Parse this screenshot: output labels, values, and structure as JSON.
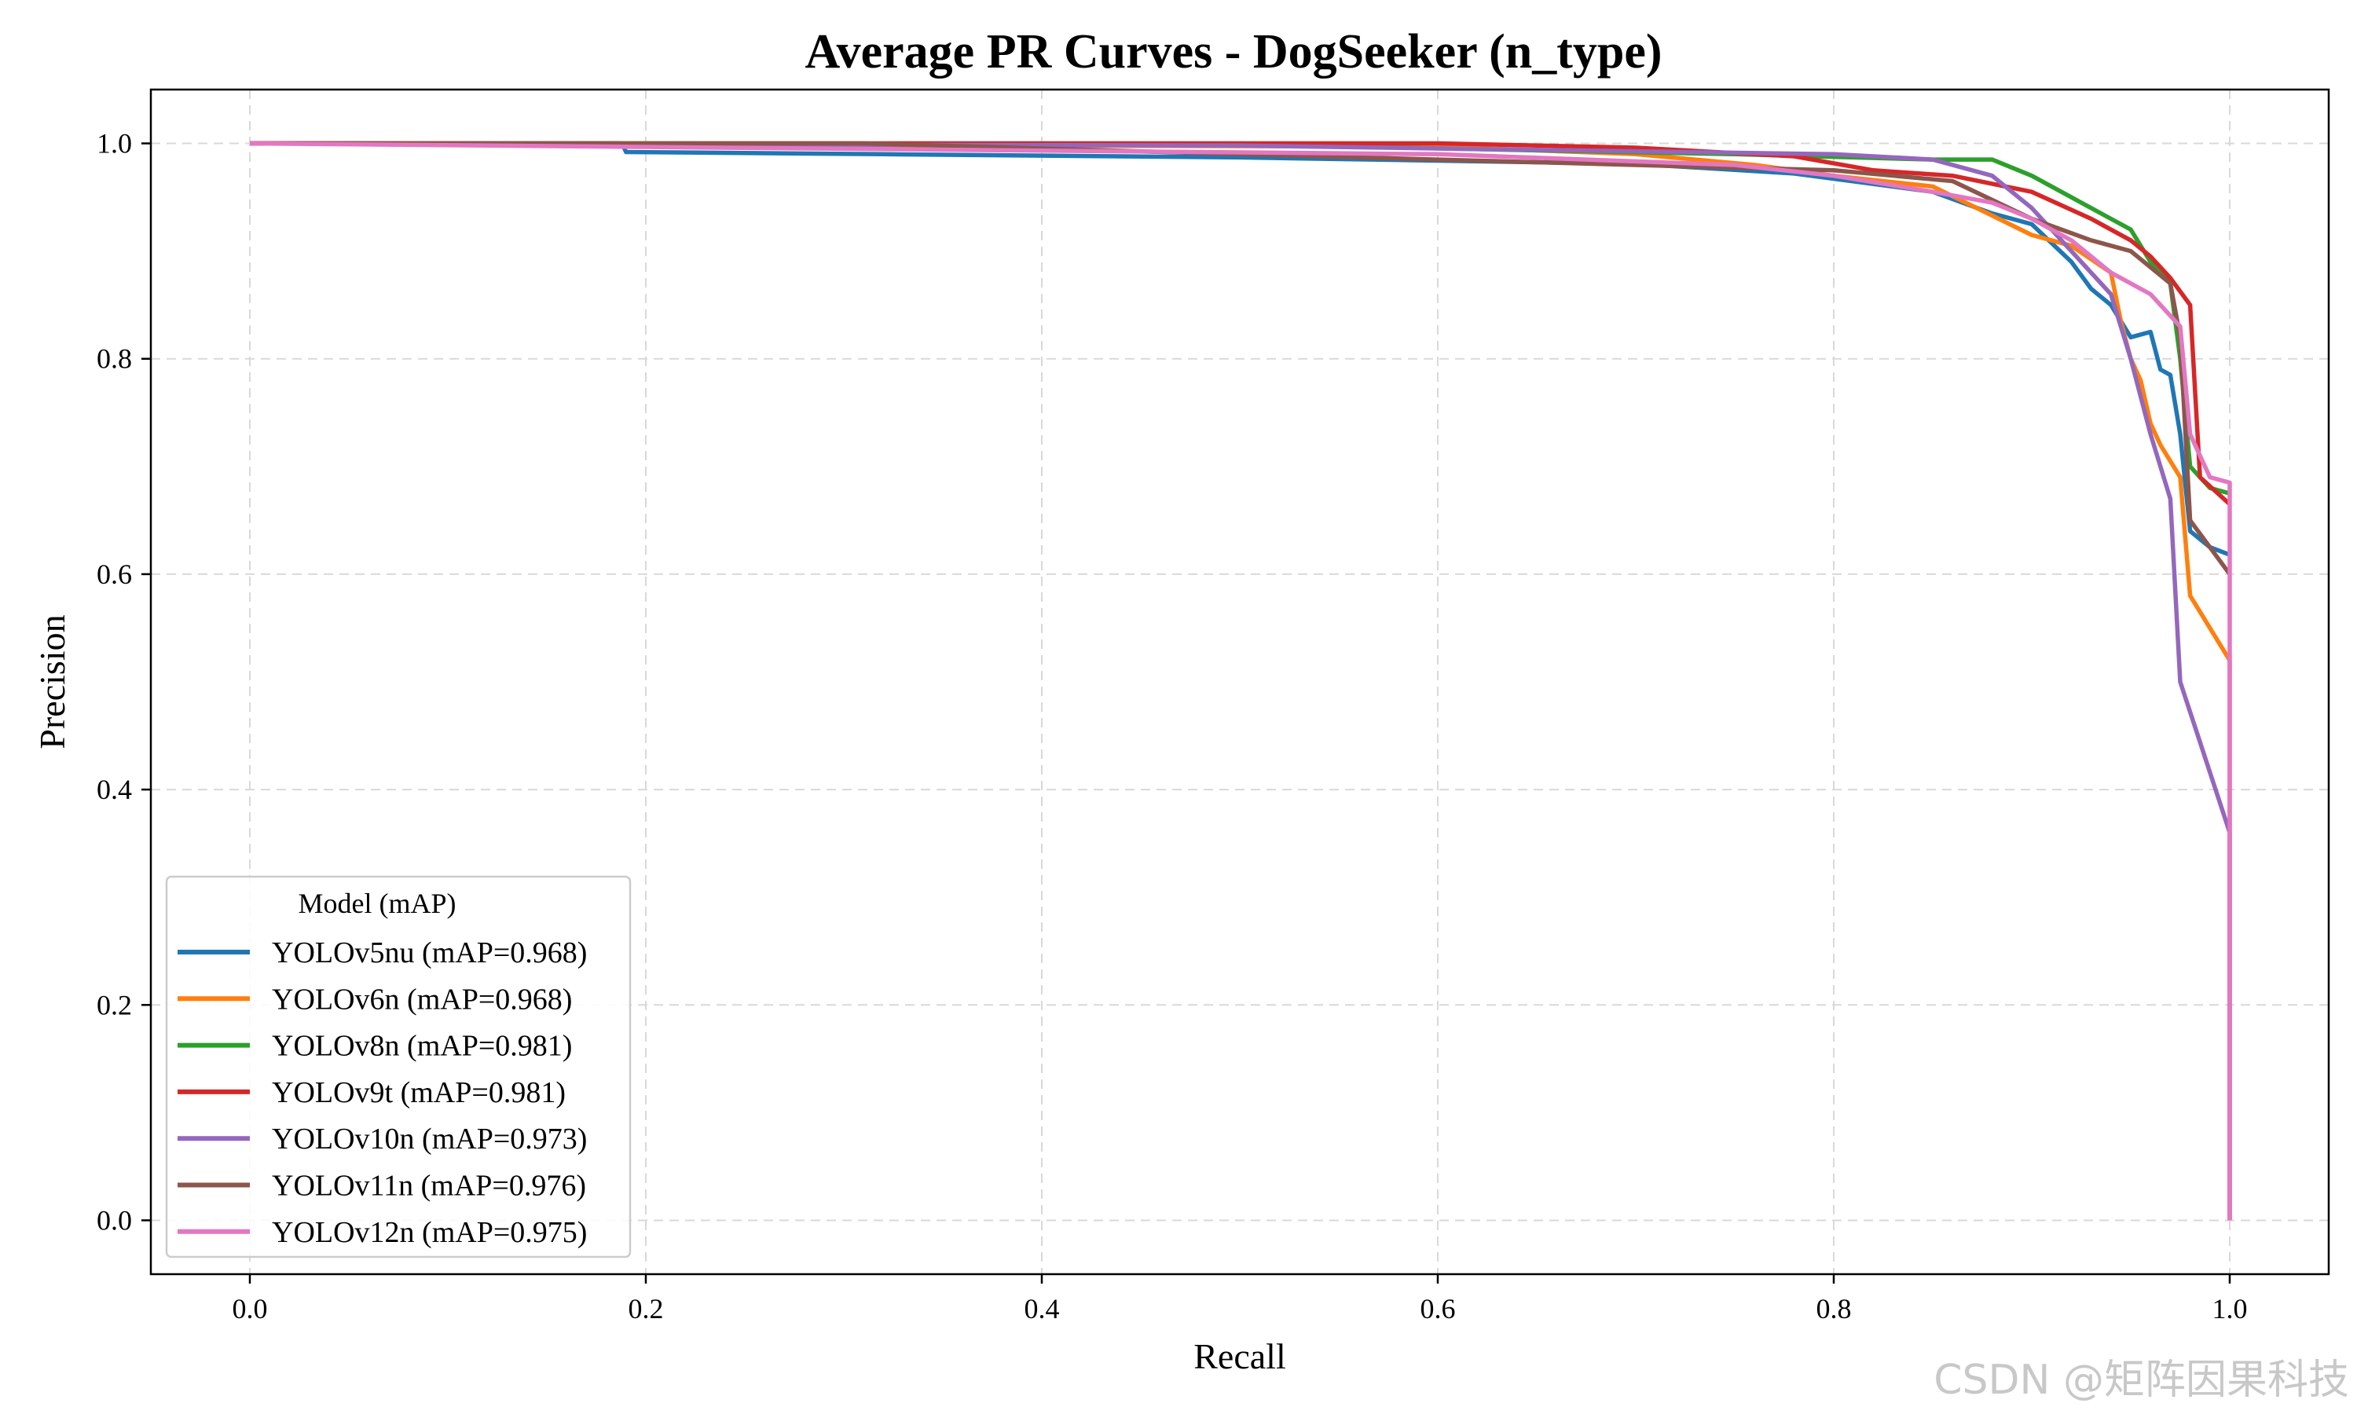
{
  "chart_data": {
    "type": "line",
    "title": "Average PR Curves - DogSeeker (n_type)",
    "xlabel": "Recall",
    "ylabel": "Precision",
    "xlim": [
      -0.05,
      1.05
    ],
    "ylim": [
      -0.05,
      1.05
    ],
    "xticks": [
      "0.0",
      "0.2",
      "0.4",
      "0.6",
      "0.8",
      "1.0"
    ],
    "yticks": [
      "0.0",
      "0.2",
      "0.4",
      "0.6",
      "0.8",
      "1.0"
    ],
    "grid": true,
    "legend_position": "lower-left",
    "legend_title": "Model (mAP)",
    "series": [
      {
        "name": "YOLOv5nu (mAP=0.968)",
        "color": "#1f77b4",
        "points": [
          [
            0.0,
            1.0
          ],
          [
            0.188,
            1.0
          ],
          [
            0.19,
            0.992
          ],
          [
            0.32,
            0.99
          ],
          [
            0.5,
            0.987
          ],
          [
            0.6,
            0.984
          ],
          [
            0.7,
            0.981
          ],
          [
            0.78,
            0.972
          ],
          [
            0.85,
            0.955
          ],
          [
            0.88,
            0.935
          ],
          [
            0.9,
            0.925
          ],
          [
            0.92,
            0.89
          ],
          [
            0.93,
            0.865
          ],
          [
            0.94,
            0.85
          ],
          [
            0.95,
            0.82
          ],
          [
            0.96,
            0.825
          ],
          [
            0.965,
            0.79
          ],
          [
            0.97,
            0.785
          ],
          [
            0.975,
            0.73
          ],
          [
            0.98,
            0.64
          ],
          [
            0.99,
            0.625
          ],
          [
            1.0,
            0.618
          ]
        ]
      },
      {
        "name": "YOLOv6n (mAP=0.968)",
        "color": "#ff7f0e",
        "points": [
          [
            0.0,
            1.0
          ],
          [
            0.6,
            0.997
          ],
          [
            0.7,
            0.99
          ],
          [
            0.76,
            0.98
          ],
          [
            0.8,
            0.97
          ],
          [
            0.85,
            0.96
          ],
          [
            0.9,
            0.915
          ],
          [
            0.92,
            0.905
          ],
          [
            0.94,
            0.88
          ],
          [
            0.945,
            0.835
          ],
          [
            0.95,
            0.8
          ],
          [
            0.955,
            0.78
          ],
          [
            0.96,
            0.74
          ],
          [
            0.965,
            0.72
          ],
          [
            0.975,
            0.69
          ],
          [
            0.98,
            0.58
          ],
          [
            1.0,
            0.52
          ],
          [
            1.0,
            0.0
          ]
        ]
      },
      {
        "name": "YOLOv8n (mAP=0.981)",
        "color": "#2ca02c",
        "points": [
          [
            0.0,
            1.0
          ],
          [
            0.5,
            0.999
          ],
          [
            0.75,
            0.99
          ],
          [
            0.85,
            0.985
          ],
          [
            0.88,
            0.985
          ],
          [
            0.9,
            0.97
          ],
          [
            0.92,
            0.95
          ],
          [
            0.93,
            0.94
          ],
          [
            0.94,
            0.93
          ],
          [
            0.95,
            0.92
          ],
          [
            0.96,
            0.89
          ],
          [
            0.97,
            0.87
          ],
          [
            0.975,
            0.8
          ],
          [
            0.98,
            0.7
          ],
          [
            0.99,
            0.68
          ],
          [
            1.0,
            0.675
          ]
        ]
      },
      {
        "name": "YOLOv9t (mAP=0.981)",
        "color": "#d62728",
        "points": [
          [
            0.0,
            1.0
          ],
          [
            0.6,
            1.0
          ],
          [
            0.7,
            0.996
          ],
          [
            0.78,
            0.988
          ],
          [
            0.82,
            0.975
          ],
          [
            0.86,
            0.97
          ],
          [
            0.9,
            0.955
          ],
          [
            0.93,
            0.93
          ],
          [
            0.95,
            0.91
          ],
          [
            0.96,
            0.895
          ],
          [
            0.97,
            0.875
          ],
          [
            0.98,
            0.85
          ],
          [
            0.985,
            0.69
          ],
          [
            1.0,
            0.665
          ]
        ]
      },
      {
        "name": "YOLOv10n (mAP=0.973)",
        "color": "#9467bd",
        "points": [
          [
            0.0,
            1.0
          ],
          [
            0.5,
            0.998
          ],
          [
            0.8,
            0.99
          ],
          [
            0.85,
            0.985
          ],
          [
            0.88,
            0.97
          ],
          [
            0.9,
            0.94
          ],
          [
            0.92,
            0.9
          ],
          [
            0.94,
            0.86
          ],
          [
            0.95,
            0.8
          ],
          [
            0.96,
            0.73
          ],
          [
            0.97,
            0.67
          ],
          [
            0.975,
            0.5
          ],
          [
            1.0,
            0.36
          ],
          [
            1.0,
            0.0
          ]
        ]
      },
      {
        "name": "YOLOv11n (mAP=0.976)",
        "color": "#8c564b",
        "points": [
          [
            0.0,
            1.0
          ],
          [
            0.31,
            1.0
          ],
          [
            0.5,
            0.99
          ],
          [
            0.6,
            0.985
          ],
          [
            0.7,
            0.98
          ],
          [
            0.8,
            0.975
          ],
          [
            0.86,
            0.965
          ],
          [
            0.9,
            0.93
          ],
          [
            0.93,
            0.91
          ],
          [
            0.95,
            0.9
          ],
          [
            0.97,
            0.87
          ],
          [
            0.975,
            0.82
          ],
          [
            0.98,
            0.65
          ],
          [
            1.0,
            0.6
          ]
        ]
      },
      {
        "name": "YOLOv12n (mAP=0.975)",
        "color": "#e377c2",
        "points": [
          [
            0.0,
            1.0
          ],
          [
            0.3,
            0.995
          ],
          [
            0.6,
            0.99
          ],
          [
            0.75,
            0.98
          ],
          [
            0.8,
            0.97
          ],
          [
            0.85,
            0.955
          ],
          [
            0.88,
            0.945
          ],
          [
            0.9,
            0.93
          ],
          [
            0.92,
            0.91
          ],
          [
            0.94,
            0.88
          ],
          [
            0.96,
            0.86
          ],
          [
            0.975,
            0.83
          ],
          [
            0.98,
            0.73
          ],
          [
            0.99,
            0.69
          ],
          [
            1.0,
            0.685
          ],
          [
            1.0,
            0.0
          ]
        ]
      }
    ]
  },
  "watermark": "CSDN @矩阵因果科技"
}
